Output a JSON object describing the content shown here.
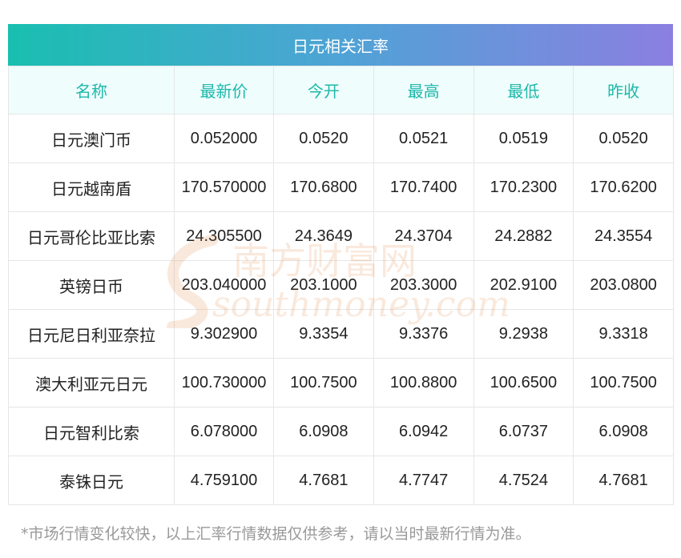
{
  "title": "日元相关汇率",
  "columns": [
    "名称",
    "最新价",
    "今开",
    "最高",
    "最低",
    "昨收"
  ],
  "rows": [
    [
      "日元澳门币",
      "0.052000",
      "0.0520",
      "0.0521",
      "0.0519",
      "0.0520"
    ],
    [
      "日元越南盾",
      "170.570000",
      "170.6800",
      "170.7400",
      "170.2300",
      "170.6200"
    ],
    [
      "日元哥伦比亚比索",
      "24.305500",
      "24.3649",
      "24.3704",
      "24.2882",
      "24.3554"
    ],
    [
      "英镑日币",
      "203.040000",
      "203.1000",
      "203.3000",
      "202.9100",
      "203.0800"
    ],
    [
      "日元尼日利亚奈拉",
      "9.302900",
      "9.3354",
      "9.3376",
      "9.2938",
      "9.3318"
    ],
    [
      "澳大利亚元日元",
      "100.730000",
      "100.7500",
      "100.8800",
      "100.6500",
      "100.7500"
    ],
    [
      "日元智利比索",
      "6.078000",
      "6.0908",
      "6.0942",
      "6.0737",
      "6.0908"
    ],
    [
      "泰铢日元",
      "4.759100",
      "4.7681",
      "4.7747",
      "4.7524",
      "4.7681"
    ]
  ],
  "footnote": "*市场行情变化较快，以上汇率行情数据仅供参考，请以当时最新行情为准。",
  "watermark": {
    "cn": "南方财富网",
    "en": "southmoney.com"
  },
  "colors": {
    "header_text": "#1eb8aa",
    "header_bg": "#effdfc",
    "gradient_start": "#19bfb0",
    "gradient_end": "#8b7fe0",
    "watermark": "#e07a2f"
  }
}
